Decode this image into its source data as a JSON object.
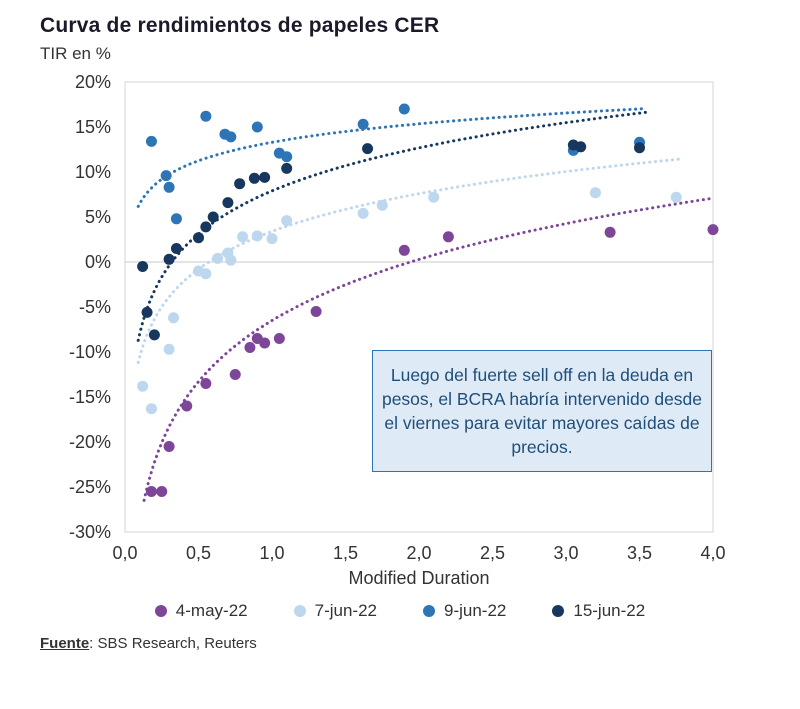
{
  "header": {
    "title": "Curva de rendimientos de papeles CER",
    "subtitle": "TIR en %"
  },
  "footer": {
    "source_label": "Fuente",
    "source_text": ": SBS Research, Reuters"
  },
  "chart_data": {
    "type": "scatter",
    "title": "Curva de rendimientos de papeles CER",
    "ylabel": "TIR en %",
    "xlabel": "Modified Duration",
    "xlim": [
      0,
      4
    ],
    "ylim": [
      -30,
      20
    ],
    "x_ticks": [
      "0,0",
      "0,5",
      "1,0",
      "1,5",
      "2,0",
      "2,5",
      "3,0",
      "3,5",
      "4,0"
    ],
    "y_ticks": [
      "20%",
      "15%",
      "10%",
      "5%",
      "0%",
      "-5%",
      "-10%",
      "-15%",
      "-20%",
      "-25%",
      "-30%"
    ],
    "grid": "zero-line-only",
    "legend_position": "bottom",
    "annotation": "Luego del fuerte sell off en la deuda en pesos, el BCRA habría intervenido desde el viernes para evitar mayores caídas de precios.",
    "series": [
      {
        "name": "4-may-22",
        "color": "#7D4698",
        "points": [
          [
            0.18,
            -25.5
          ],
          [
            0.25,
            -25.5
          ],
          [
            0.3,
            -20.5
          ],
          [
            0.42,
            -16.0
          ],
          [
            0.55,
            -13.5
          ],
          [
            0.75,
            -12.5
          ],
          [
            0.85,
            -9.5
          ],
          [
            0.9,
            -8.5
          ],
          [
            0.95,
            -9.0
          ],
          [
            1.05,
            -8.5
          ],
          [
            1.3,
            -5.5
          ],
          [
            1.9,
            1.3
          ],
          [
            2.2,
            2.8
          ],
          [
            3.3,
            3.3
          ],
          [
            4.0,
            3.6
          ]
        ],
        "trend": {
          "type": "log",
          "a": -6.5,
          "b": 9.8,
          "x0": 0.13,
          "x1": 4.0
        }
      },
      {
        "name": "7-jun-22",
        "color": "#BDD7EE",
        "points": [
          [
            0.12,
            -13.8
          ],
          [
            0.18,
            -16.3
          ],
          [
            0.3,
            -9.7
          ],
          [
            0.33,
            -6.2
          ],
          [
            0.5,
            -1.0
          ],
          [
            0.55,
            -1.3
          ],
          [
            0.63,
            0.4
          ],
          [
            0.7,
            1.0
          ],
          [
            0.72,
            0.2
          ],
          [
            0.8,
            2.8
          ],
          [
            0.9,
            2.9
          ],
          [
            1.0,
            2.6
          ],
          [
            1.1,
            4.6
          ],
          [
            1.62,
            5.4
          ],
          [
            1.75,
            6.3
          ],
          [
            2.1,
            7.2
          ],
          [
            3.2,
            7.7
          ],
          [
            3.75,
            7.2
          ]
        ],
        "trend": {
          "type": "log",
          "a": 3.4,
          "b": 6.05,
          "x0": 0.09,
          "x1": 3.8
        }
      },
      {
        "name": "9-jun-22",
        "color": "#2E75B6",
        "points": [
          [
            0.18,
            13.4
          ],
          [
            0.28,
            9.6
          ],
          [
            0.3,
            8.3
          ],
          [
            0.35,
            4.8
          ],
          [
            0.55,
            16.2
          ],
          [
            0.68,
            14.2
          ],
          [
            0.72,
            13.9
          ],
          [
            0.9,
            15.0
          ],
          [
            1.05,
            12.1
          ],
          [
            1.1,
            11.7
          ],
          [
            1.62,
            15.3
          ],
          [
            1.9,
            17.0
          ],
          [
            3.05,
            12.4
          ],
          [
            3.5,
            13.3
          ]
        ],
        "trend": {
          "type": "log",
          "a": 13.3,
          "b": 2.96,
          "x0": 0.09,
          "x1": 3.55
        }
      },
      {
        "name": "15-jun-22",
        "color": "#17375E",
        "points": [
          [
            0.12,
            -0.5
          ],
          [
            0.15,
            -5.6
          ],
          [
            0.2,
            -8.1
          ],
          [
            0.3,
            0.3
          ],
          [
            0.35,
            1.5
          ],
          [
            0.5,
            2.7
          ],
          [
            0.55,
            3.9
          ],
          [
            0.6,
            5.0
          ],
          [
            0.7,
            6.6
          ],
          [
            0.78,
            8.7
          ],
          [
            0.88,
            9.3
          ],
          [
            0.95,
            9.4
          ],
          [
            1.1,
            10.4
          ],
          [
            1.65,
            12.6
          ],
          [
            3.05,
            13.0
          ],
          [
            3.1,
            12.8
          ],
          [
            3.5,
            12.7
          ]
        ],
        "trend": {
          "type": "log",
          "a": 7.9,
          "b": 6.9,
          "x0": 0.09,
          "x1": 3.55
        }
      }
    ]
  }
}
